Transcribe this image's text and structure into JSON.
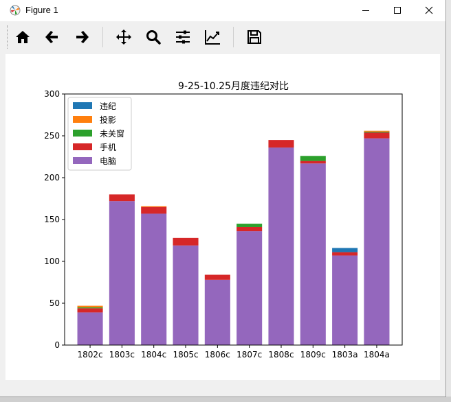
{
  "window": {
    "title": "Figure 1"
  },
  "toolbar": {
    "buttons": [
      {
        "name": "home-button",
        "icon": "home-icon"
      },
      {
        "name": "back-button",
        "icon": "arrow-left-icon"
      },
      {
        "name": "forward-button",
        "icon": "arrow-right-icon"
      },
      {
        "name": "pan-button",
        "icon": "move-icon"
      },
      {
        "name": "zoom-button",
        "icon": "magnifier-icon"
      },
      {
        "name": "subplots-button",
        "icon": "sliders-icon"
      },
      {
        "name": "axes-edit-button",
        "icon": "chart-line-icon"
      },
      {
        "name": "save-button",
        "icon": "floppy-disk-icon"
      }
    ]
  },
  "chart_data": {
    "type": "bar",
    "stacked": true,
    "title": "9-25-10.25月度违纪对比",
    "xlabel": "",
    "ylabel": "",
    "ylim": [
      0,
      300
    ],
    "yticks": [
      0,
      50,
      100,
      150,
      200,
      250,
      300
    ],
    "categories": [
      "1802c",
      "1803c",
      "1804c",
      "1805c",
      "1806c",
      "1807c",
      "1808c",
      "1809c",
      "1803a",
      "1804a"
    ],
    "legend_position": "top-left",
    "series_order_bottom_to_top": [
      "电脑",
      "手机",
      "未关窗",
      "投影",
      "违纪"
    ],
    "series": [
      {
        "name": "违纪",
        "color": "#1f77b4",
        "values": [
          0,
          0,
          0,
          0,
          0,
          0,
          0,
          0,
          5,
          0
        ]
      },
      {
        "name": "投影",
        "color": "#ff7f0e",
        "values": [
          2,
          0,
          1,
          0,
          0,
          0,
          0,
          0,
          0,
          1
        ]
      },
      {
        "name": "未关窗",
        "color": "#2ca02c",
        "values": [
          1,
          0,
          0,
          0,
          0,
          4,
          0,
          6,
          0,
          1
        ]
      },
      {
        "name": "手机",
        "color": "#d62728",
        "values": [
          5,
          8,
          8,
          9,
          6,
          5,
          9,
          3,
          4,
          7
        ]
      },
      {
        "name": "电脑",
        "color": "#9467bd",
        "values": [
          39,
          172,
          157,
          119,
          78,
          136,
          236,
          217,
          107,
          247
        ]
      }
    ]
  }
}
